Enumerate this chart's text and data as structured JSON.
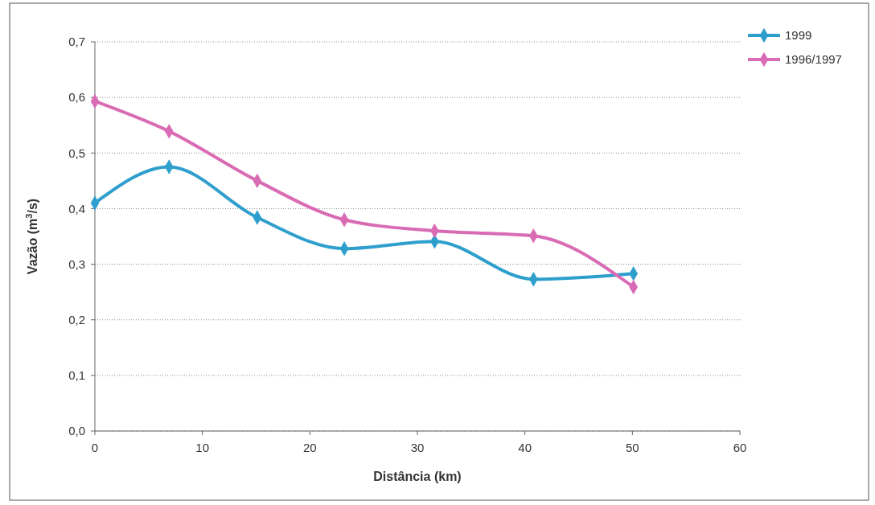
{
  "chart_data": {
    "type": "line",
    "xlabel": "Distância (km)",
    "ylabel": "Vazão (m$^{3}$/s)",
    "x": [
      0,
      6.9,
      15.1,
      23.2,
      31.6,
      40.8,
      50.1
    ],
    "series": [
      {
        "name": "1999",
        "color": "#2e9fcc",
        "values": [
          0.41,
          0.475,
          0.384,
          0.328,
          0.341,
          0.273,
          0.283
        ]
      },
      {
        "name": "1996/1997",
        "color": "#d96bb5",
        "values": [
          0.593,
          0.539,
          0.45,
          0.38,
          0.36,
          0.351,
          0.259
        ]
      }
    ],
    "xlim": [
      0,
      60
    ],
    "xticks": [
      0,
      10,
      20,
      30,
      40,
      50,
      60
    ],
    "ylim": [
      0,
      0.7
    ],
    "yticks": [
      {
        "value": 0,
        "label": "0,0"
      },
      {
        "value": 0.1,
        "label": "0,1"
      },
      {
        "value": 0.2,
        "label": "0,2"
      },
      {
        "value": 0.3,
        "label": "0,3"
      },
      {
        "value": 0.4,
        "label": "0,4"
      },
      {
        "value": 0.5,
        "label": "0,5"
      },
      {
        "value": 0.6,
        "label": "0,6"
      },
      {
        "value": 0.7,
        "label": "0,7"
      }
    ],
    "grid": "y",
    "legend": "top right",
    "marker": "diamond",
    "line_style": "solid"
  }
}
